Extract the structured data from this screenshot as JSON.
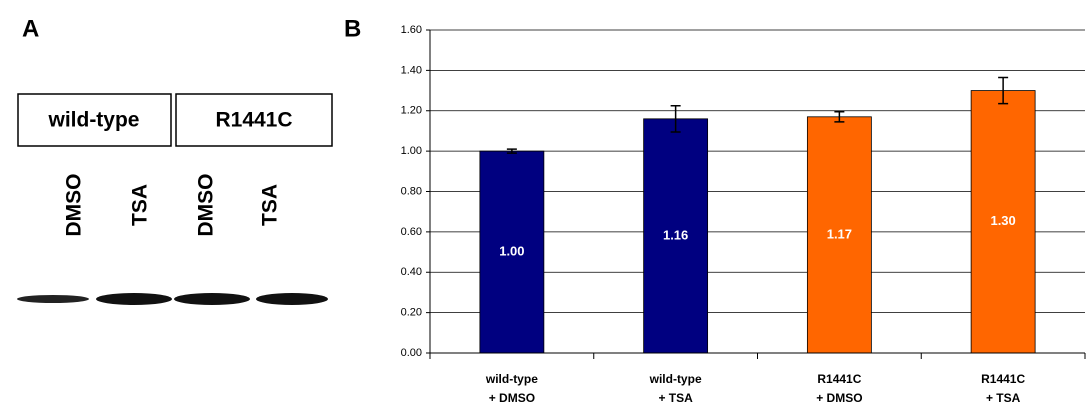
{
  "panel_a": {
    "label": "A",
    "groups": [
      "wild-type",
      "R1441C"
    ],
    "lanes": [
      "DMSO",
      "TSA",
      "DMSO",
      "TSA"
    ]
  },
  "chart_data": {
    "type": "bar",
    "panel_label": "B",
    "categories": [
      [
        "wild-type",
        "+ DMSO"
      ],
      [
        "wild-type",
        "+ TSA"
      ],
      [
        "R1441C",
        "+ DMSO"
      ],
      [
        "R1441C",
        "+ TSA"
      ]
    ],
    "values": [
      1.0,
      1.16,
      1.17,
      1.3
    ],
    "value_labels": [
      "1.00",
      "1.16",
      "1.17",
      "1.30"
    ],
    "errors": [
      0.01,
      0.065,
      0.025,
      0.065
    ],
    "colors": [
      "#000080",
      "#000080",
      "#ff6600",
      "#ff6600"
    ],
    "ylim": [
      0,
      1.6
    ],
    "yticks": [
      {
        "value": 0,
        "label": "0.00"
      },
      {
        "value": 0.2,
        "label": "0.20"
      },
      {
        "value": 0.4,
        "label": "0.40"
      },
      {
        "value": 0.6,
        "label": "0.60"
      },
      {
        "value": 0.8,
        "label": "0.80"
      },
      {
        "value": 1.0,
        "label": "1.00"
      },
      {
        "value": 1.2,
        "label": "1.20"
      },
      {
        "value": 1.4,
        "label": "1.40"
      },
      {
        "value": 1.6,
        "label": "1.60"
      }
    ],
    "grid": true
  }
}
